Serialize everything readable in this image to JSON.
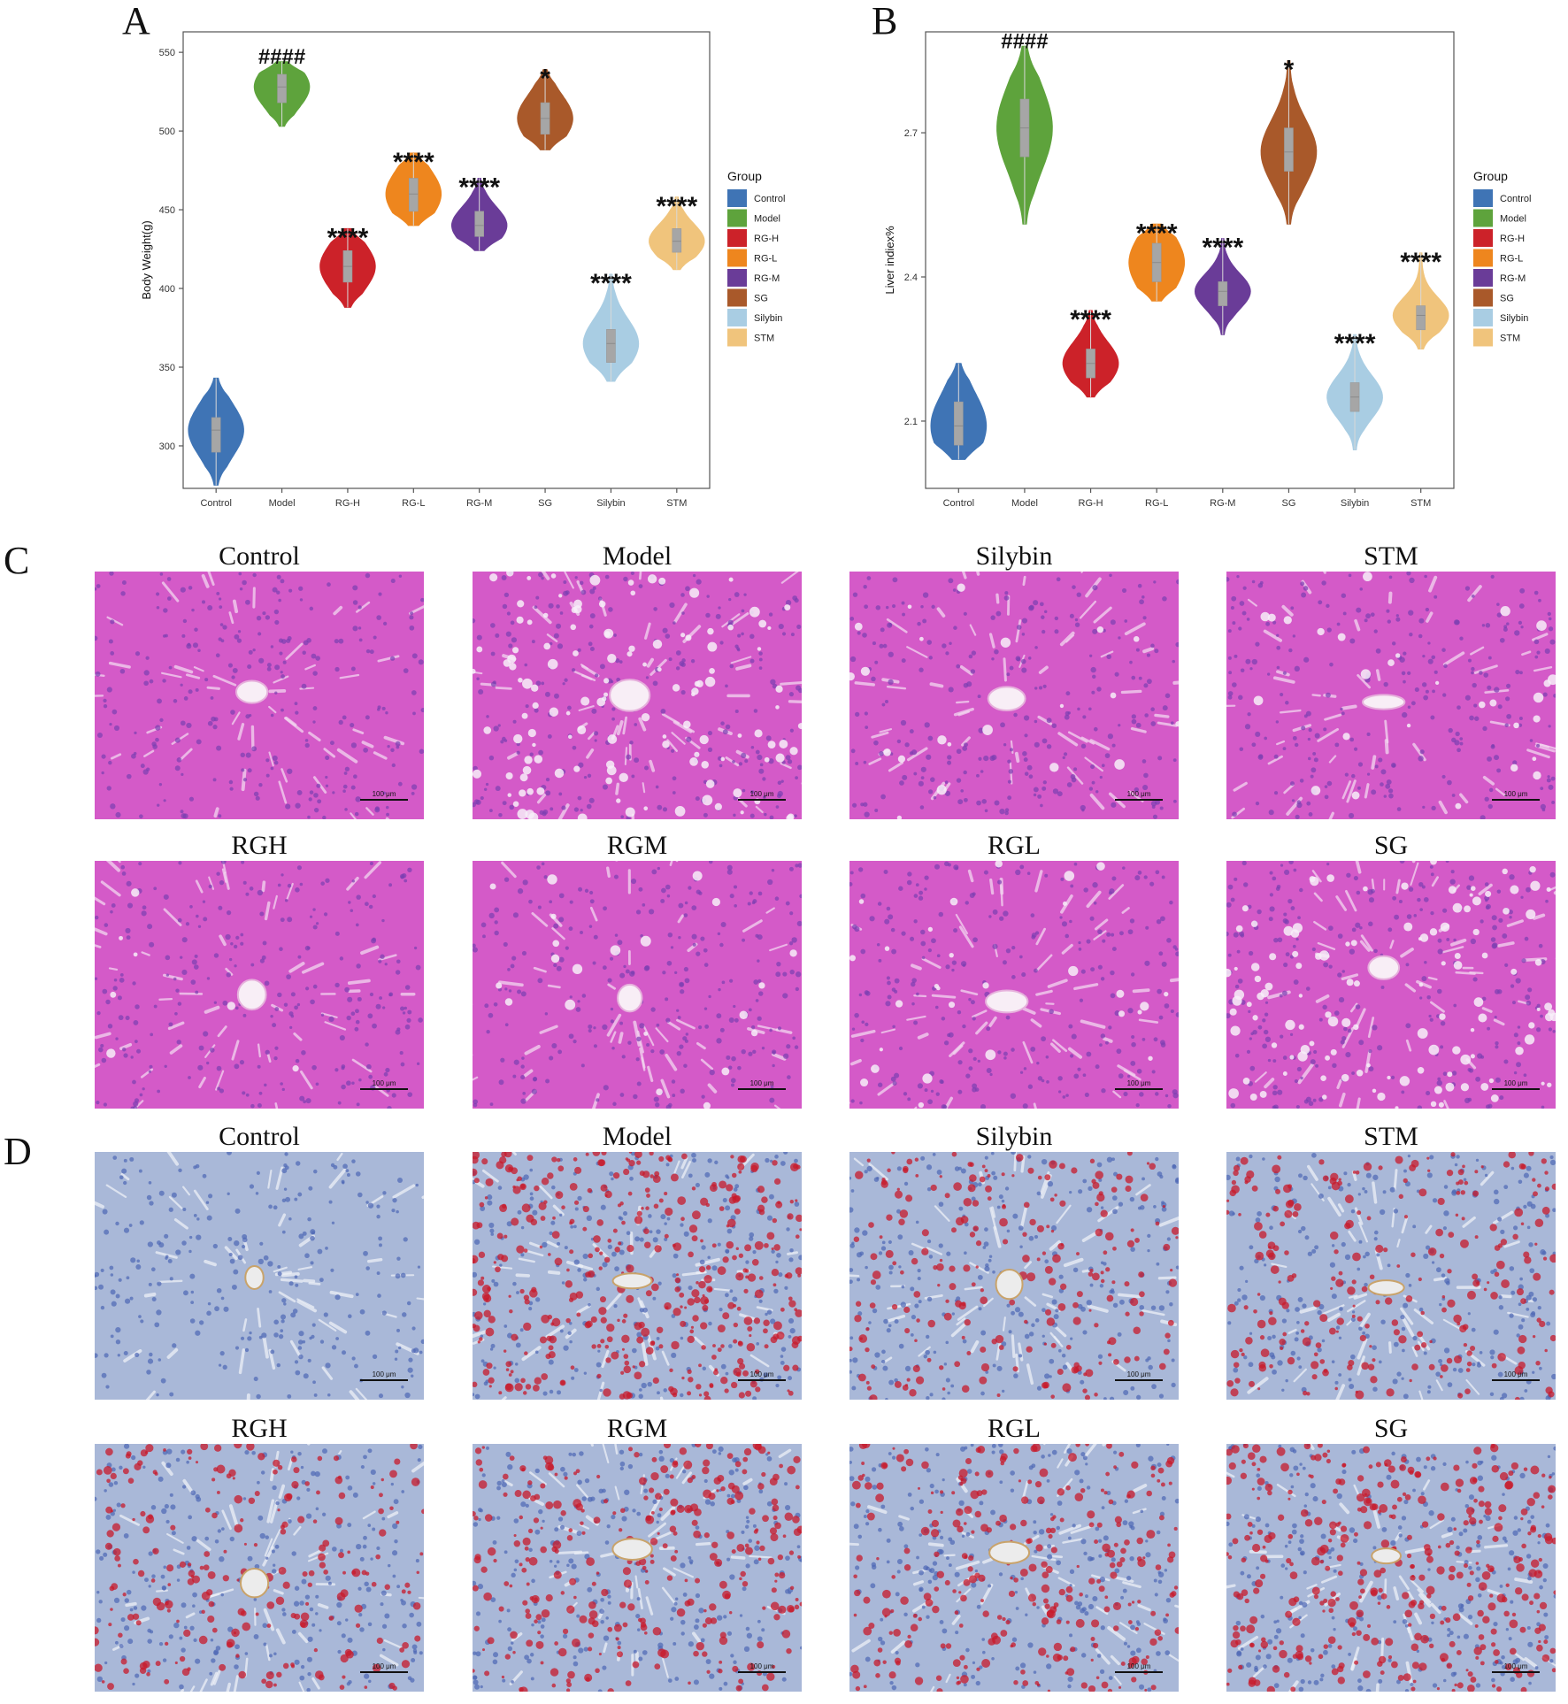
{
  "panels": {
    "A": "A",
    "B": "B",
    "C": "C",
    "D": "D"
  },
  "legend_title": "Group",
  "groups": [
    "Control",
    "Model",
    "RG-H",
    "RG-L",
    "RG-M",
    "SG",
    "Silybin",
    "STM"
  ],
  "colors": {
    "Control": "#3f74b5",
    "Model": "#5ea33c",
    "RG-H": "#cc2229",
    "RG-L": "#ee861e",
    "RG-M": "#6a3c98",
    "SG": "#a9592a",
    "Silybin": "#a9cde3",
    "STM": "#f0c47c"
  },
  "chart_data": [
    {
      "type": "violin",
      "panel": "A",
      "ylabel": "Body Weight(g)",
      "ylim": [
        273,
        563
      ],
      "yticks": [
        300,
        350,
        400,
        450,
        500,
        550
      ],
      "categories": [
        "Control",
        "Model",
        "RG-H",
        "RG-L",
        "RG-M",
        "SG",
        "Silybin",
        "STM"
      ],
      "series": [
        {
          "group": "Control",
          "min": 275,
          "q1": 296,
          "median": 310,
          "q3": 318,
          "max": 343,
          "annotation": ""
        },
        {
          "group": "Model",
          "min": 503,
          "q1": 518,
          "median": 528,
          "q3": 536,
          "max": 544,
          "annotation": "####"
        },
        {
          "group": "RG-H",
          "min": 388,
          "q1": 404,
          "median": 414,
          "q3": 424,
          "max": 438,
          "annotation": "****"
        },
        {
          "group": "RG-L",
          "min": 440,
          "q1": 449,
          "median": 460,
          "q3": 470,
          "max": 486,
          "annotation": "****"
        },
        {
          "group": "RG-M",
          "min": 424,
          "q1": 433,
          "median": 440,
          "q3": 449,
          "max": 470,
          "annotation": "****"
        },
        {
          "group": "SG",
          "min": 488,
          "q1": 498,
          "median": 508,
          "q3": 518,
          "max": 539,
          "annotation": "*"
        },
        {
          "group": "Silybin",
          "min": 341,
          "q1": 353,
          "median": 365,
          "q3": 374,
          "max": 409,
          "annotation": "****"
        },
        {
          "group": "STM",
          "min": 412,
          "q1": 423,
          "median": 430,
          "q3": 438,
          "max": 458,
          "annotation": "****"
        }
      ]
    },
    {
      "type": "violin",
      "panel": "B",
      "ylabel": "Liver indiex%",
      "ylim": [
        1.96,
        2.91
      ],
      "yticks": [
        2.1,
        2.4,
        2.7
      ],
      "categories": [
        "Control",
        "Model",
        "RG-H",
        "RG-L",
        "RG-M",
        "SG",
        "Silybin",
        "STM"
      ],
      "series": [
        {
          "group": "Control",
          "min": 2.02,
          "q1": 2.05,
          "median": 2.09,
          "q3": 2.14,
          "max": 2.22,
          "annotation": ""
        },
        {
          "group": "Model",
          "min": 2.51,
          "q1": 2.65,
          "median": 2.71,
          "q3": 2.77,
          "max": 2.88,
          "annotation": "####"
        },
        {
          "group": "RG-H",
          "min": 2.15,
          "q1": 2.19,
          "median": 2.22,
          "q3": 2.25,
          "max": 2.33,
          "annotation": "****"
        },
        {
          "group": "RG-L",
          "min": 2.35,
          "q1": 2.39,
          "median": 2.43,
          "q3": 2.47,
          "max": 2.51,
          "annotation": "****"
        },
        {
          "group": "RG-M",
          "min": 2.28,
          "q1": 2.34,
          "median": 2.37,
          "q3": 2.39,
          "max": 2.48,
          "annotation": "****"
        },
        {
          "group": "SG",
          "min": 2.51,
          "q1": 2.62,
          "median": 2.66,
          "q3": 2.71,
          "max": 2.85,
          "annotation": "*"
        },
        {
          "group": "Silybin",
          "min": 2.04,
          "q1": 2.12,
          "median": 2.15,
          "q3": 2.18,
          "max": 2.28,
          "annotation": "****"
        },
        {
          "group": "STM",
          "min": 2.25,
          "q1": 2.29,
          "median": 2.32,
          "q3": 2.34,
          "max": 2.45,
          "annotation": "****"
        }
      ]
    }
  ],
  "histology": {
    "C": {
      "titles": [
        "Control",
        "Model",
        "Silybin",
        "STM",
        "RGH",
        "RGM",
        "RGL",
        "SG"
      ],
      "scale_bar": "100 μm"
    },
    "D": {
      "titles": [
        "Control",
        "Model",
        "Silybin",
        "STM",
        "RGH",
        "RGM",
        "RGL",
        "SG"
      ],
      "scale_bar": "100 μm"
    }
  }
}
